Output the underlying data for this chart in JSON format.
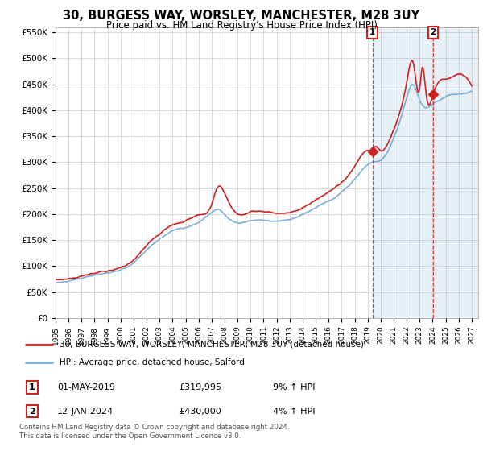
{
  "title": "30, BURGESS WAY, WORSLEY, MANCHESTER, M28 3UY",
  "subtitle": "Price paid vs. HM Land Registry's House Price Index (HPI)",
  "ylim": [
    0,
    560000
  ],
  "yticks": [
    0,
    50000,
    100000,
    150000,
    200000,
    250000,
    300000,
    350000,
    400000,
    450000,
    500000,
    550000
  ],
  "ytick_labels": [
    "£0",
    "£50K",
    "£100K",
    "£150K",
    "£200K",
    "£250K",
    "£300K",
    "£350K",
    "£400K",
    "£450K",
    "£500K",
    "£550K"
  ],
  "xlim_start": 1995.0,
  "xlim_end": 2027.5,
  "hpi_color": "#7bafd4",
  "price_color": "#cc2222",
  "shade_color": "#ddeeff",
  "marker1_x": 2019.37,
  "marker1_y": 319995,
  "marker2_x": 2024.04,
  "marker2_y": 430000,
  "marker1_label": "1",
  "marker2_label": "2",
  "shade_start": 2019.37,
  "legend_line1": "30, BURGESS WAY, WORSLEY, MANCHESTER, M28 3UY (detached house)",
  "legend_line2": "HPI: Average price, detached house, Salford",
  "background_color": "#ffffff",
  "grid_color": "#cccccc"
}
